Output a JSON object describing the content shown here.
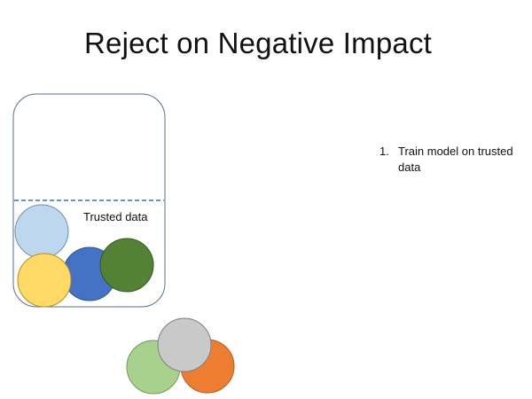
{
  "slide": {
    "title": "Reject on Negative Impact"
  },
  "diagram": {
    "container_label": "Trusted data",
    "trusted_points": [
      {
        "name": "light-blue",
        "color": "#bdd7ee"
      },
      {
        "name": "yellow",
        "color": "#ffd966"
      },
      {
        "name": "blue",
        "color": "#4472c4"
      },
      {
        "name": "dark-green",
        "color": "#548235"
      }
    ],
    "incoming_points": [
      {
        "name": "light-green",
        "color": "#a9d18e"
      },
      {
        "name": "orange",
        "color": "#ed7d31"
      },
      {
        "name": "gray",
        "color": "#c9c9c9"
      }
    ],
    "container_stroke": "#5b6e85",
    "divider_color": "#2e75b6"
  },
  "steps": [
    {
      "number": "1.",
      "text": "Train model on trusted data"
    }
  ]
}
